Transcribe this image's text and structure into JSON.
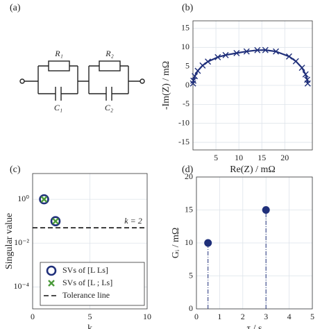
{
  "circuit": {
    "label": "(a)",
    "r1": "R₁",
    "r2": "R₂",
    "c1": "C₁",
    "c2": "C₂"
  },
  "chart_data": [
    {
      "type": "line",
      "label": "(b)",
      "xlabel": "Re(Z) / mΩ",
      "ylabel": "-Im(Z) / mΩ",
      "xlim": [
        0,
        26
      ],
      "ylim": [
        -17,
        17
      ],
      "xticks": [
        5,
        10,
        15,
        20
      ],
      "yticks": [
        -15,
        -10,
        -5,
        0,
        5,
        10,
        15
      ],
      "grid": true,
      "series": [
        {
          "color": "#1f2f7a",
          "x": [
            24.99,
            24.88,
            24.52,
            23.74,
            22.41,
            20.93,
            18.07,
            15.77,
            14.03,
            11.68,
            9.5,
            7.11,
            5.41,
            3.26,
            2.1,
            1.05,
            0.4,
            0.1,
            0.016
          ],
          "values": [
            0.5,
            1.49,
            2.91,
            4.63,
            6.36,
            7.61,
            8.93,
            9.3,
            9.27,
            8.94,
            8.5,
            7.98,
            7.43,
            6.27,
            5.24,
            3.83,
            2.42,
            1.24,
            0.5
          ]
        }
      ]
    },
    {
      "type": "scatter",
      "label": "(c)",
      "xlabel": "k",
      "ylabel": "Singular value",
      "xlim": [
        0,
        10
      ],
      "ylim": [
        1e-05,
        15
      ],
      "log_y": true,
      "xticks": [
        0,
        5,
        10
      ],
      "yticks": [
        {
          "value": 1,
          "label": "10⁰"
        },
        {
          "value": 0.01,
          "label": "10⁻²"
        },
        {
          "value": 0.0001,
          "label": "10⁻⁴"
        }
      ],
      "grid": true,
      "series": [
        {
          "name": "SVs of [L Ls]",
          "marker": "circle",
          "color": "#1f2f7a",
          "x": [
            1,
            2
          ],
          "values": [
            1.0,
            0.1
          ]
        },
        {
          "name": "SVs of [L ; Ls]",
          "marker": "x",
          "color": "#4a9a3a",
          "x": [
            1,
            2
          ],
          "values": [
            1.0,
            0.1
          ]
        }
      ],
      "reference_line": {
        "name": "Tolerance line",
        "value": 0.05,
        "annotation": "k = 2"
      }
    },
    {
      "type": "stem",
      "label": "(d)",
      "xlabel": "τ / s",
      "ylabel": "Gᵢ / mΩ",
      "xlim": [
        0,
        5
      ],
      "ylim": [
        0,
        20
      ],
      "xticks": [
        0,
        1,
        2,
        3,
        4,
        5
      ],
      "yticks": [
        0,
        5,
        10,
        15,
        20
      ],
      "grid": true,
      "series": [
        {
          "color": "#1f2f7a",
          "x": [
            0.5,
            3
          ],
          "values": [
            10,
            15
          ]
        }
      ]
    }
  ]
}
